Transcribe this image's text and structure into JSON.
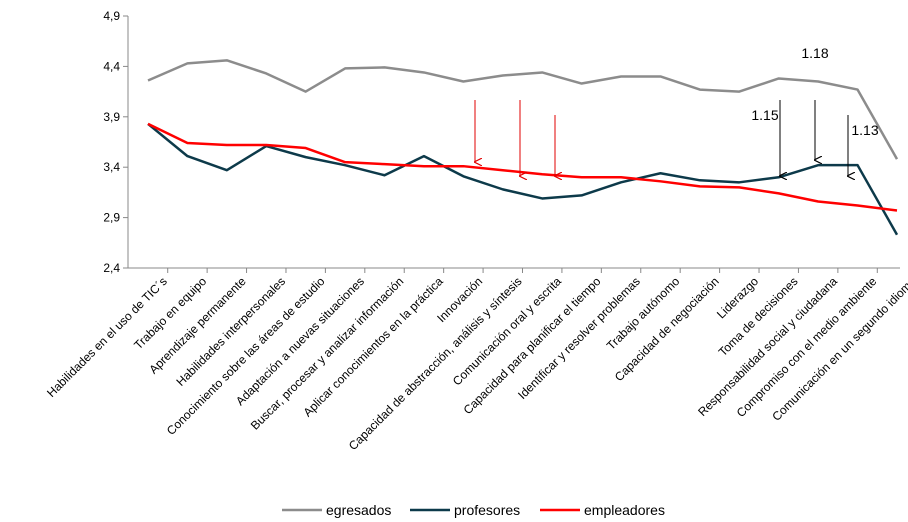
{
  "chart_data": {
    "type": "line",
    "categories": [
      "Habilidades en el uso de TIC´s",
      "Trabajo en equipo",
      "Aprendizaje permanente",
      "Habilidades interpersonales",
      "Conocimiento sobre las áreas de estudio",
      "Adaptación a nuevas situaciones",
      "Buscar, procesar y analizar información",
      "Aplicar conocimientos en la práctica",
      "Innovación",
      "Capacidad de abstracción, análisis y síntesis",
      "Comunicación oral y escrita",
      "Capacidad para planificar el tiempo",
      "Identificar y resolver problemas",
      "Trabajo autónomo",
      "Capacidad de negociación",
      "Liderazgo",
      "Toma de decisiones",
      "Responsabilidad social y ciudadana",
      "Compromiso con el medio ambiente",
      "Comunicación en un segundo idioma"
    ],
    "series": [
      {
        "name": "egresados",
        "color": "#8c8c8c",
        "values": [
          4.26,
          4.43,
          4.46,
          4.33,
          4.15,
          4.38,
          4.39,
          4.34,
          4.25,
          4.31,
          4.34,
          4.23,
          4.3,
          4.3,
          4.17,
          4.15,
          4.28,
          4.25,
          4.17,
          3.48
        ]
      },
      {
        "name": "profesores",
        "color": "#0d3a4a",
        "values": [
          3.83,
          3.51,
          3.37,
          3.61,
          3.5,
          3.42,
          3.32,
          3.51,
          3.31,
          3.18,
          3.09,
          3.12,
          3.25,
          3.34,
          3.27,
          3.25,
          3.3,
          3.42,
          3.42,
          2.73
        ]
      },
      {
        "name": "empleadores",
        "color": "#ff0000",
        "values": [
          3.83,
          3.64,
          3.62,
          3.62,
          3.59,
          3.45,
          3.43,
          3.41,
          3.41,
          3.37,
          3.33,
          3.3,
          3.3,
          3.26,
          3.21,
          3.2,
          3.14,
          3.06,
          3.02,
          2.97
        ]
      }
    ],
    "ylim": [
      2.4,
      4.9
    ],
    "yticks": [
      {
        "value": 2.4,
        "label": "2,4"
      },
      {
        "value": 2.9,
        "label": "2,9"
      },
      {
        "value": 3.4,
        "label": "3,4"
      },
      {
        "value": 3.9,
        "label": "3,9"
      },
      {
        "value": 4.4,
        "label": "4,4"
      },
      {
        "value": 4.9,
        "label": "4,9"
      }
    ],
    "annotations": [
      "1.18",
      "1.15",
      "1.13"
    ],
    "legend": "bottom"
  }
}
